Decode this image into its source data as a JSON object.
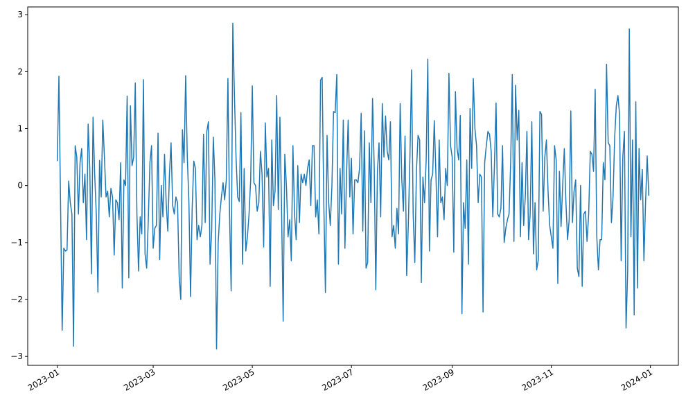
{
  "chart_data": {
    "type": "line",
    "color": "#1f77b4",
    "values": [
      0.43,
      1.92,
      -0.3,
      -2.54,
      -1.1,
      -1.15,
      -1.13,
      0.08,
      -0.3,
      -0.5,
      -2.82,
      0.7,
      0.5,
      -0.5,
      0.4,
      0.65,
      -0.3,
      0.2,
      -0.95,
      1.08,
      0.3,
      -1.55,
      1.2,
      0.2,
      -0.5,
      -1.87,
      0.44,
      -0.2,
      1.15,
      0.5,
      -0.2,
      -0.1,
      -0.55,
      -0.05,
      -0.2,
      -1.22,
      -0.25,
      -0.3,
      -0.6,
      0.4,
      -1.8,
      0.1,
      0.0,
      1.57,
      -1.62,
      1.4,
      0.35,
      0.5,
      1.8,
      -0.5,
      -1.5,
      -0.55,
      -0.85,
      1.86,
      -1.2,
      -1.45,
      -0.6,
      0.4,
      0.7,
      -1.1,
      -0.75,
      -0.7,
      0.92,
      -1.3,
      0.0,
      -0.55,
      0.55,
      -0.3,
      -0.8,
      0.2,
      0.75,
      -0.35,
      -0.5,
      -0.2,
      -0.3,
      -1.6,
      -2.0,
      0.98,
      0.4,
      1.93,
      0.5,
      -0.3,
      -1.95,
      -0.4,
      0.43,
      0.3,
      -0.95,
      -0.7,
      -0.9,
      -0.7,
      0.9,
      -0.65,
      0.95,
      1.12,
      -1.38,
      -0.8,
      0.85,
      0.1,
      -2.87,
      -1.0,
      -0.5,
      -0.2,
      0.05,
      -0.25,
      0.1,
      1.88,
      -0.5,
      -1.85,
      2.85,
      1.6,
      0.5,
      -0.2,
      -0.28,
      1.28,
      -1.38,
      0.3,
      -1.15,
      -0.9,
      -0.5,
      0.1,
      1.75,
      0.05,
      0.0,
      -0.45,
      -0.3,
      0.6,
      0.2,
      -1.08,
      1.1,
      0.15,
      0.3,
      -1.77,
      0.8,
      -0.35,
      -0.1,
      1.58,
      -0.42,
      1.2,
      -0.4,
      -2.38,
      0.55,
      0.0,
      -0.9,
      -0.6,
      -1.32,
      0.7,
      -0.5,
      -0.95,
      0.35,
      -0.65,
      0.2,
      0.05,
      0.2,
      0.0,
      0.3,
      0.45,
      -0.35,
      0.7,
      0.7,
      -0.55,
      -0.25,
      -0.85,
      1.85,
      1.9,
      -0.3,
      -1.88,
      0.88,
      -0.3,
      -0.7,
      0.0,
      1.3,
      1.28,
      1.95,
      -1.38,
      0.3,
      -0.5,
      1.15,
      -1.1,
      0.2,
      1.15,
      -0.2,
      0.48,
      -0.85,
      0.1,
      0.1,
      0.05,
      0.3,
      1.27,
      -0.8,
      0.96,
      -1.45,
      -1.35,
      0.75,
      -0.3,
      1.53,
      0.35,
      -1.83,
      0.25,
      0.75,
      -0.55,
      1.44,
      0.5,
      1.22,
      0.6,
      0.45,
      1.12,
      -0.9,
      -0.7,
      -1.1,
      -0.4,
      -0.85,
      1.44,
      0.1,
      -0.45,
      0.87,
      -1.58,
      -0.7,
      0.5,
      2.03,
      -0.5,
      -1.35,
      0.25,
      0.88,
      0.8,
      -1.7,
      0.15,
      -0.3,
      0.45,
      2.22,
      -1.15,
      0.1,
      0.2,
      1.14,
      0.2,
      -0.9,
      0.8,
      -0.3,
      -0.2,
      -0.6,
      0.3,
      0.0,
      1.97,
      0.7,
      0.5,
      -1.17,
      1.65,
      0.65,
      0.45,
      1.23,
      -2.25,
      -0.3,
      -0.75,
      0.45,
      -1.38,
      1.35,
      0.3,
      1.88,
      1.0,
      0.7,
      -0.3,
      0.2,
      0.15,
      -2.22,
      0.4,
      0.7,
      0.95,
      0.9,
      0.6,
      -0.55,
      0.35,
      1.45,
      -0.5,
      -0.55,
      -0.4,
      0.7,
      -1.0,
      -0.75,
      -0.6,
      -0.5,
      0.4,
      1.95,
      -0.98,
      1.76,
      0.8,
      1.32,
      -0.9,
      0.4,
      -0.7,
      -0.2,
      0.95,
      -0.95,
      -0.5,
      1.12,
      -1.2,
      -0.3,
      -1.48,
      -1.3,
      1.3,
      1.25,
      -0.45,
      0.5,
      0.8,
      -0.1,
      -0.7,
      -0.9,
      -1.1,
      0.7,
      0.45,
      -1.72,
      0.25,
      -0.72,
      0.0,
      0.65,
      -0.3,
      -0.95,
      -0.6,
      1.31,
      -0.65,
      -0.1,
      0.1,
      -1.45,
      -1.6,
      0.0,
      -1.77,
      -0.5,
      -0.45,
      -0.98,
      -0.5,
      0.6,
      0.55,
      0.25,
      1.69,
      -0.9,
      -1.48,
      -0.95,
      -0.95,
      0.4,
      0.1,
      2.13,
      0.75,
      0.7,
      -0.65,
      -0.2,
      0.85,
      1.4,
      1.58,
      1.25,
      -1.32,
      0.5,
      0.95,
      -2.5,
      -1.5,
      2.75,
      -0.9,
      0.8,
      -2.27,
      1.47,
      -1.8,
      0.65,
      -0.25,
      0.28,
      -1.32,
      -0.3,
      0.52,
      -0.18
    ],
    "xlim": [
      -18.2,
      382.2
    ],
    "xticks": [
      {
        "value": 0,
        "label": "2023-01"
      },
      {
        "value": 59,
        "label": "2023-03"
      },
      {
        "value": 120,
        "label": "2023-05"
      },
      {
        "value": 181,
        "label": "2023-07"
      },
      {
        "value": 243,
        "label": "2023-09"
      },
      {
        "value": 304,
        "label": "2023-11"
      },
      {
        "value": 365,
        "label": "2024-01"
      }
    ],
    "ylim": [
      -3.156,
      3.136
    ],
    "yticks": [
      {
        "value": -3,
        "label": "−3"
      },
      {
        "value": -2,
        "label": "−2"
      },
      {
        "value": -1,
        "label": "−1"
      },
      0,
      1,
      2,
      3
    ]
  }
}
